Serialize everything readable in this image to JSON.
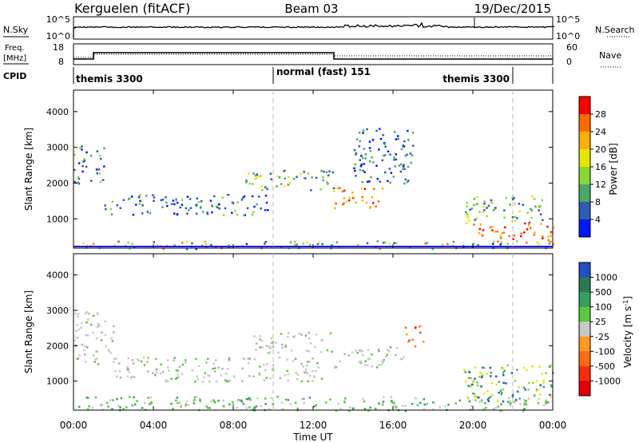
{
  "header": {
    "station": "Kerguelen (fitACF)",
    "beam": "Beam 03",
    "date": "19/Dec/2015"
  },
  "noise_panel": {
    "left_label": "N.Sky",
    "right_label": "N.Search",
    "left_ticks": [
      "10^5",
      "10^0"
    ],
    "right_ticks": [
      "10^5",
      "10^0"
    ]
  },
  "freq_panel": {
    "left_label_1": "Freq.",
    "left_label_2": "[MHz]",
    "right_label": "Nave",
    "left_ticks": [
      "18",
      "8"
    ],
    "right_ticks": [
      "60",
      "0"
    ]
  },
  "cpid_panel": {
    "label": "CPID",
    "modes": [
      {
        "name": "themis 3300",
        "start_h": 0,
        "end_h": 10
      },
      {
        "name": "normal (fast) 151",
        "start_h": 10,
        "end_h": 22
      },
      {
        "name": "themis 3300",
        "start_h": 22,
        "end_h": 24
      }
    ]
  },
  "time_axis": {
    "label": "Time UT",
    "ticks": [
      "00:00",
      "04:00",
      "08:00",
      "12:00",
      "16:00",
      "20:00",
      "00:00"
    ]
  },
  "power_colorbar": {
    "label": "Power [dB]",
    "ticks": [
      "28",
      "24",
      "20",
      "16",
      "12",
      "8",
      "4"
    ],
    "colors": [
      "#ff0000",
      "#ff6a00",
      "#ffb000",
      "#e6e600",
      "#88d830",
      "#4aa868",
      "#2c5cb0",
      "#0018ff"
    ]
  },
  "velocity_colorbar": {
    "label_main": "Velocity [m s",
    "label_sup": "-1",
    "label_end": "]",
    "ticks": [
      "1000",
      "500",
      "100",
      "25",
      "-25",
      "-100",
      "-500",
      "-1000"
    ],
    "colors": [
      "#1e50c8",
      "#2a7a50",
      "#34a060",
      "#5ac83c",
      "#c8c8c8",
      "#ff9a1e",
      "#ff6a14",
      "#ff2a0a",
      "#e60000"
    ]
  },
  "chart_data": [
    {
      "type": "heatmap",
      "title": "Power",
      "ylabel": "Slant Range [km]",
      "xlabel": "Time UT",
      "xlim_hours": [
        0,
        24
      ],
      "ylim_km": [
        180,
        4600
      ],
      "ytick_labels": [
        "4000",
        "3000",
        "2000",
        "1000"
      ],
      "yticks_km": [
        4000,
        3000,
        2000,
        1000
      ],
      "scatter_bands": [
        {
          "t0": 0.0,
          "t1": 1.5,
          "r0": 2000,
          "r1": 3100,
          "value": "blue-green"
        },
        {
          "t0": 1.5,
          "t1": 9.8,
          "r0": 1100,
          "r1": 1700,
          "value": "blue-green"
        },
        {
          "t0": 0.0,
          "t1": 24.0,
          "r0": 180,
          "r1": 400,
          "value": "low"
        },
        {
          "t0": 8.5,
          "t1": 13.0,
          "r0": 1800,
          "r1": 2400,
          "value": "green"
        },
        {
          "t0": 13.0,
          "t1": 15.5,
          "r0": 1300,
          "r1": 1900,
          "value": "red-orange"
        },
        {
          "t0": 14.0,
          "t1": 17.0,
          "r0": 2000,
          "r1": 3600,
          "value": "blue"
        },
        {
          "t0": 19.5,
          "t1": 23.5,
          "r0": 900,
          "r1": 1700,
          "value": "green"
        },
        {
          "t0": 20.0,
          "t1": 24.0,
          "r0": 400,
          "r1": 900,
          "value": "red"
        }
      ]
    },
    {
      "type": "heatmap",
      "title": "Velocity",
      "ylabel": "Slant Range [km]",
      "xlabel": "Time UT",
      "xlim_hours": [
        0,
        24
      ],
      "ylim_km": [
        180,
        4600
      ],
      "ytick_labels": [
        "4000",
        "3000",
        "2000",
        "1000"
      ],
      "yticks_km": [
        4000,
        3000,
        2000,
        1000
      ],
      "scatter_bands": [
        {
          "t0": 0.0,
          "t1": 2.0,
          "r0": 1500,
          "r1": 3000,
          "value": "gray"
        },
        {
          "t0": 2.0,
          "t1": 12.5,
          "r0": 1000,
          "r1": 1700,
          "value": "gray"
        },
        {
          "t0": 0.0,
          "t1": 24.0,
          "r0": 180,
          "r1": 600,
          "value": "light-green"
        },
        {
          "t0": 9.0,
          "t1": 13.0,
          "r0": 1800,
          "r1": 2400,
          "value": "gray"
        },
        {
          "t0": 13.0,
          "t1": 16.5,
          "r0": 1400,
          "r1": 2000,
          "value": "gray"
        },
        {
          "t0": 19.5,
          "t1": 24.0,
          "r0": 400,
          "r1": 1500,
          "value": "green"
        },
        {
          "t0": 16.5,
          "t1": 17.5,
          "r0": 2000,
          "r1": 2600,
          "value": "orange"
        }
      ]
    }
  ]
}
